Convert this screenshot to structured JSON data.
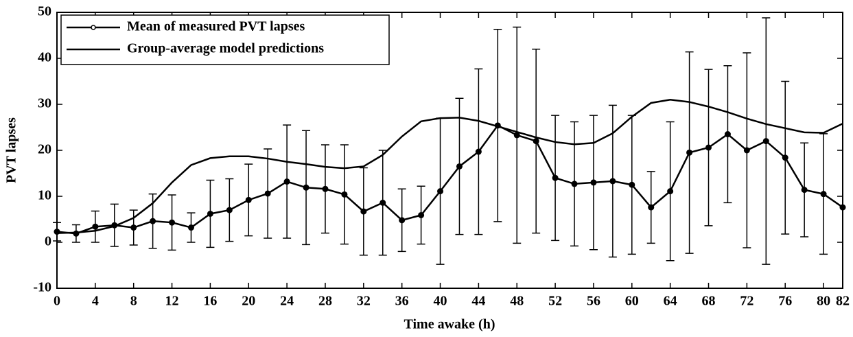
{
  "chart_data": {
    "type": "line",
    "xlabel": "Time awake (h)",
    "ylabel": "PVT lapses",
    "x": [
      0,
      2,
      4,
      6,
      8,
      10,
      12,
      14,
      16,
      18,
      20,
      22,
      24,
      26,
      28,
      30,
      32,
      34,
      36,
      38,
      40,
      42,
      44,
      46,
      48,
      50,
      52,
      54,
      56,
      58,
      60,
      62,
      64,
      66,
      68,
      70,
      72,
      74,
      76,
      78,
      80,
      82
    ],
    "series": [
      {
        "name": "Mean of measured PVT lapses",
        "color": "#000000",
        "marker": "circle",
        "values": [
          2.3,
          1.9,
          3.4,
          3.7,
          3.2,
          4.6,
          4.3,
          3.2,
          6.2,
          7.0,
          9.2,
          10.6,
          13.2,
          11.9,
          11.6,
          10.4,
          6.7,
          8.6,
          4.8,
          5.9,
          11.1,
          16.5,
          19.7,
          25.4,
          23.3,
          22.0,
          14.0,
          12.7,
          13.0,
          13.3,
          12.5,
          7.6,
          11.1,
          19.5,
          20.6,
          23.5,
          20.0,
          22.0,
          18.4,
          11.4,
          10.5,
          7.6
        ],
        "errors": [
          2.0,
          1.9,
          3.4,
          4.6,
          3.8,
          5.9,
          6.0,
          3.2,
          7.3,
          6.8,
          7.8,
          9.7,
          12.3,
          12.4,
          9.6,
          10.8,
          9.5,
          11.4,
          6.8,
          6.3,
          15.9,
          14.8,
          18.0,
          20.9,
          23.5,
          20.0,
          13.6,
          13.5,
          14.6,
          16.5,
          15.1,
          7.8,
          15.1,
          21.9,
          17.0,
          14.9,
          21.2,
          26.8,
          16.6,
          10.2,
          13.1,
          null
        ]
      },
      {
        "name": "Group-average model predictions",
        "color": "#000000",
        "values": [
          2.0,
          2.1,
          2.5,
          3.5,
          5.3,
          8.5,
          13.0,
          16.8,
          18.3,
          18.7,
          18.7,
          18.2,
          17.5,
          17.0,
          16.4,
          16.1,
          16.5,
          19.0,
          23.0,
          26.3,
          27.0,
          27.1,
          26.4,
          25.2,
          24.0,
          22.8,
          21.8,
          21.3,
          21.6,
          23.7,
          27.3,
          30.3,
          31.0,
          30.5,
          29.5,
          28.3,
          26.9,
          25.7,
          24.8,
          23.9,
          23.8,
          25.8
        ]
      }
    ],
    "xlim": [
      0,
      82
    ],
    "xticks": [
      0,
      4,
      8,
      12,
      16,
      20,
      24,
      28,
      32,
      36,
      40,
      44,
      48,
      52,
      56,
      60,
      64,
      68,
      72,
      76,
      80,
      82
    ],
    "ylim": [
      -10,
      50
    ],
    "yticks": [
      -10,
      0,
      10,
      20,
      30,
      40,
      50
    ],
    "legend": "upper left",
    "grid": false
  }
}
